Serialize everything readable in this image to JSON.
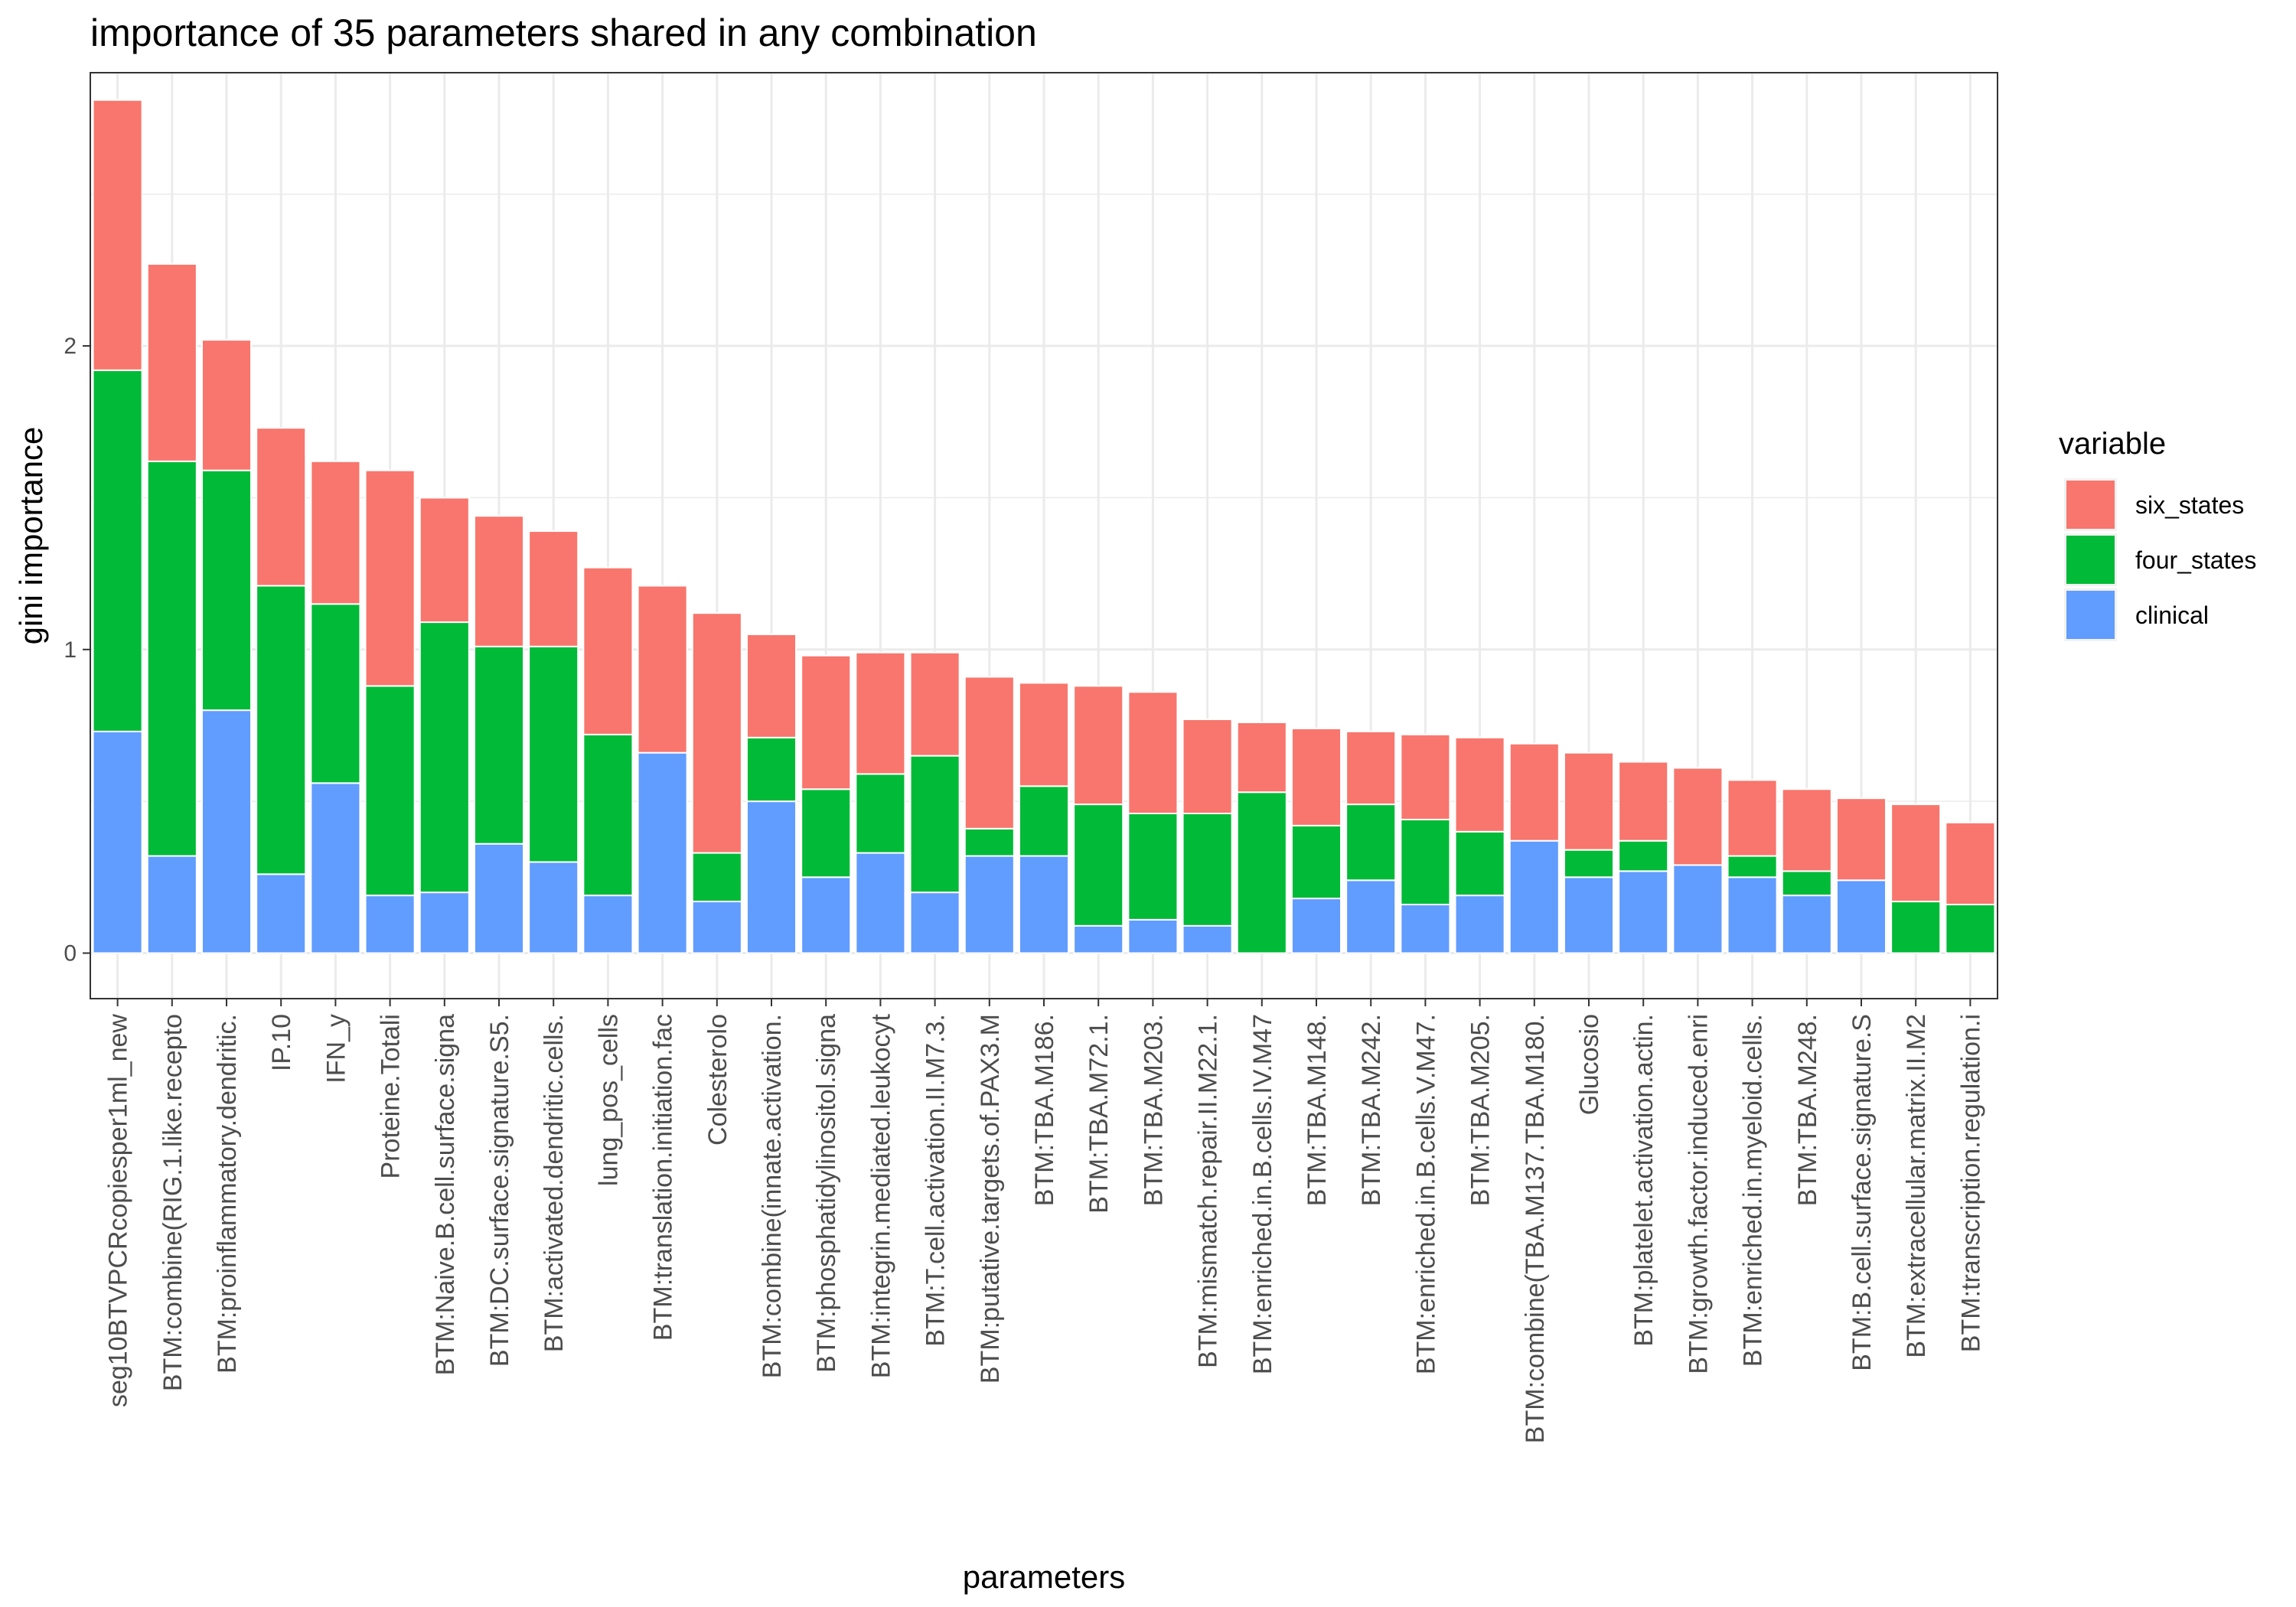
{
  "chart_data": {
    "type": "bar",
    "stacked": true,
    "title": "importance of 35 parameters shared in any combination",
    "xlabel": "parameters",
    "ylabel": "gini importance",
    "ylim": [
      -0.15,
      2.9
    ],
    "yticks": [
      0,
      1,
      2
    ],
    "grid": true,
    "legend": {
      "title": "variable",
      "position": "right",
      "entries": [
        {
          "name": "six_states",
          "color": "#F8766D"
        },
        {
          "name": "four_states",
          "color": "#00BA38"
        },
        {
          "name": "clinical",
          "color": "#619CFF"
        }
      ]
    },
    "categories": [
      "seg10BTVPCRcopiesper1ml_new",
      "BTM:combine(RIG.1.like.recepto",
      "BTM:proinflammatory.dendritic.",
      "IP.10",
      "IFN_y",
      "Proteine.Totali",
      "BTM:Naive.B.cell.surface.signa",
      "BTM:DC.surface.signature.S5.",
      "BTM:activated.dendritic.cells.",
      "lung_pos_cells",
      "BTM:translation.initiation.fac",
      "Colesterolo",
      "BTM:combine(innate.activation.",
      "BTM:phosphatidylinositol.signa",
      "BTM:integrin.mediated.leukocyt",
      "BTM:T.cell.activation.II.M7.3.",
      "BTM:putative.targets.of.PAX3.M",
      "BTM:TBA.M186.",
      "BTM:TBA.M72.1.",
      "BTM:TBA.M203.",
      "BTM:mismatch.repair.II.M22.1.",
      "BTM:enriched.in.B.cells.IV.M47",
      "BTM:TBA.M148.",
      "BTM:TBA.M242.",
      "BTM:enriched.in.B.cells.V.M47.",
      "BTM:TBA.M205.",
      "BTM:combine(TBA.M137.TBA.M180.",
      "Glucosio",
      "BTM:platelet.activation.actin.",
      "BTM:growth.factor.induced.enri",
      "BTM:enriched.in.myeloid.cells.",
      "BTM:TBA.M248.",
      "BTM:B.cell.surface.signature.S",
      "BTM:extracellular.matrix.II.M2",
      "BTM:transcription.regulation.i"
    ],
    "series": [
      {
        "name": "clinical",
        "values": [
          0.73,
          0.32,
          0.8,
          0.26,
          0.56,
          0.19,
          0.2,
          0.36,
          0.3,
          0.19,
          0.66,
          0.17,
          0.5,
          0.25,
          0.33,
          0.2,
          0.32,
          0.32,
          0.09,
          0.11,
          0.09,
          0.0,
          0.18,
          0.24,
          0.16,
          0.19,
          0.37,
          0.25,
          0.27,
          0.29,
          0.25,
          0.19,
          0.24,
          0.0,
          0.0
        ]
      },
      {
        "name": "four_states",
        "values": [
          1.19,
          1.3,
          0.79,
          0.95,
          0.59,
          0.69,
          0.89,
          0.65,
          0.71,
          0.53,
          0.0,
          0.16,
          0.21,
          0.29,
          0.26,
          0.45,
          0.09,
          0.23,
          0.4,
          0.35,
          0.37,
          0.53,
          0.24,
          0.25,
          0.28,
          0.21,
          0.0,
          0.09,
          0.1,
          0.0,
          0.07,
          0.08,
          0.0,
          0.17,
          0.16
        ]
      },
      {
        "name": "six_states",
        "values": [
          0.89,
          0.65,
          0.43,
          0.52,
          0.47,
          0.71,
          0.41,
          0.43,
          0.38,
          0.55,
          0.55,
          0.79,
          0.34,
          0.44,
          0.4,
          0.34,
          0.5,
          0.34,
          0.39,
          0.4,
          0.31,
          0.23,
          0.32,
          0.24,
          0.28,
          0.31,
          0.32,
          0.32,
          0.26,
          0.32,
          0.25,
          0.27,
          0.27,
          0.32,
          0.27
        ]
      }
    ]
  }
}
